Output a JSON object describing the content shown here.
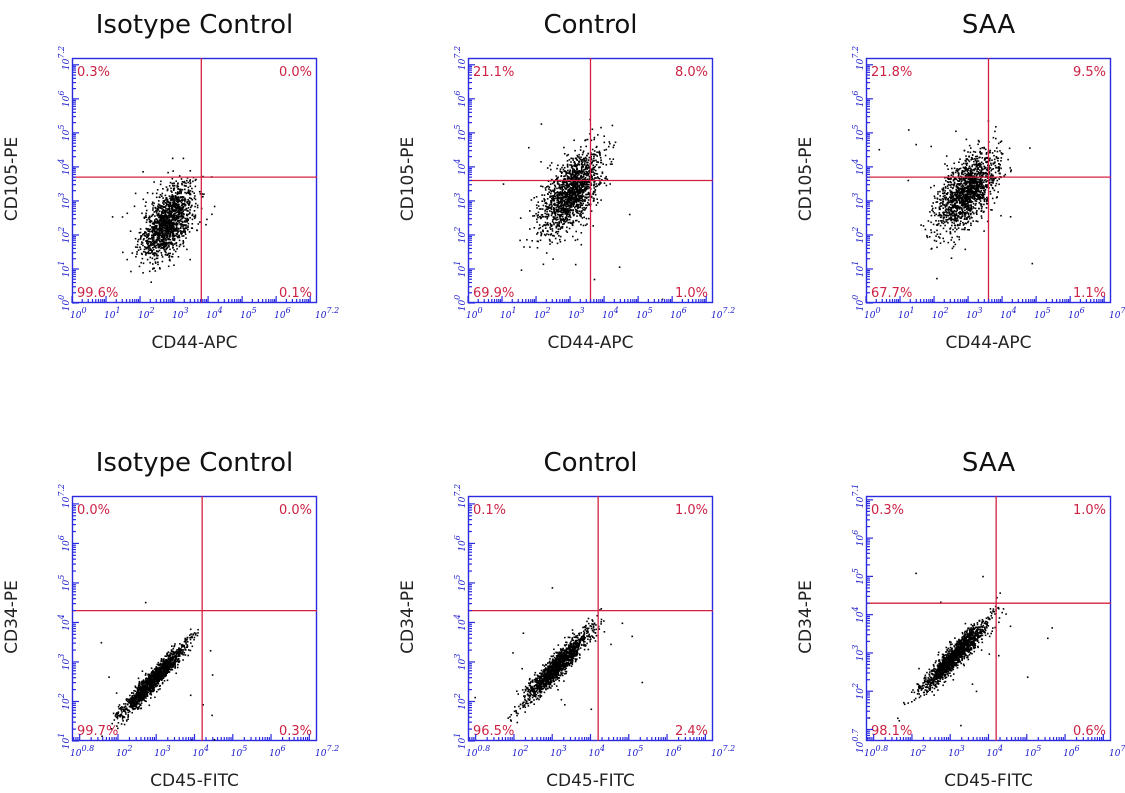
{
  "colors": {
    "frame": "#2a2ae0",
    "gate": "#d42040",
    "dots": "#000000",
    "tick_labels": "#1a1acc"
  },
  "chart_data": [
    {
      "type": "scatter",
      "title": "Isotype Control",
      "xlabel": "CD44-APC",
      "ylabel": "CD105-PE",
      "scale": "log",
      "xlim": [
        0,
        7.2
      ],
      "ylim": [
        0,
        7.2
      ],
      "x_tick_labels": [
        "0",
        "1",
        "2",
        "3",
        "4",
        "5",
        "6",
        "7.2"
      ],
      "y_tick_labels": [
        "0",
        "1",
        "2",
        "3",
        "4",
        "5",
        "6",
        "7.2"
      ],
      "gate": {
        "x": 3.8,
        "y": 3.7
      },
      "quadrants": {
        "upper_left": "0.3%",
        "upper_right": "0.0%",
        "lower_left": "99.6%",
        "lower_right": "0.1%"
      },
      "cluster": {
        "center_x": 2.8,
        "center_y": 2.4,
        "sd_x": 0.38,
        "sd_y": 0.55,
        "correlation": 0.55,
        "n_events": 1400
      }
    },
    {
      "type": "scatter",
      "title": "Control",
      "xlabel": "CD44-APC",
      "ylabel": "CD105-PE",
      "scale": "log",
      "xlim": [
        0,
        7.2
      ],
      "ylim": [
        0,
        7.2
      ],
      "x_tick_labels": [
        "0",
        "1",
        "2",
        "3",
        "4",
        "5",
        "6",
        "7.2"
      ],
      "y_tick_labels": [
        "0",
        "1",
        "2",
        "3",
        "4",
        "5",
        "6",
        "7.2"
      ],
      "gate": {
        "x": 3.6,
        "y": 3.6
      },
      "quadrants": {
        "upper_left": "21.1%",
        "upper_right": "8.0%",
        "lower_left": "69.9%",
        "lower_right": "1.0%"
      },
      "cluster": {
        "center_x": 3.0,
        "center_y": 3.25,
        "sd_x": 0.45,
        "sd_y": 0.6,
        "correlation": 0.6,
        "n_events": 1500
      }
    },
    {
      "type": "scatter",
      "title": "SAA",
      "xlabel": "CD44-APC",
      "ylabel": "CD105-PE",
      "scale": "log",
      "xlim": [
        0,
        7.2
      ],
      "ylim": [
        0,
        7.2
      ],
      "x_tick_labels": [
        "0",
        "1",
        "2",
        "3",
        "4",
        "5",
        "6",
        "7.2"
      ],
      "y_tick_labels": [
        "0",
        "1",
        "2",
        "3",
        "4",
        "5",
        "6",
        "7.2"
      ],
      "gate": {
        "x": 3.6,
        "y": 3.7
      },
      "quadrants": {
        "upper_left": "21.8%",
        "upper_right": "9.5%",
        "lower_left": "67.7%",
        "lower_right": "1.1%"
      },
      "cluster": {
        "center_x": 2.95,
        "center_y": 3.3,
        "sd_x": 0.45,
        "sd_y": 0.6,
        "correlation": 0.6,
        "n_events": 1500
      }
    },
    {
      "type": "scatter",
      "title": "Isotype Control",
      "xlabel": "CD45-FITC",
      "ylabel": "CD34-PE",
      "scale": "log",
      "xlim": [
        0.8,
        7.2
      ],
      "ylim": [
        1,
        7.2
      ],
      "x_tick_labels": [
        "0.8",
        "2",
        "3",
        "4",
        "5",
        "6",
        "7.2"
      ],
      "y_tick_labels": [
        "1",
        "2",
        "3",
        "4",
        "5",
        "6",
        "7.2"
      ],
      "gate": {
        "x": 4.2,
        "y": 4.3
      },
      "quadrants": {
        "upper_left": "0.0%",
        "upper_right": "0.0%",
        "lower_left": "99.7%",
        "lower_right": "0.3%"
      },
      "cluster": {
        "center_x": 2.9,
        "center_y": 2.55,
        "sd_x": 0.42,
        "sd_y": 0.45,
        "correlation": 0.95,
        "n_events": 1400
      }
    },
    {
      "type": "scatter",
      "title": "Control",
      "xlabel": "CD45-FITC",
      "ylabel": "CD34-PE",
      "scale": "log",
      "xlim": [
        0.8,
        7.2
      ],
      "ylim": [
        1,
        7.2
      ],
      "x_tick_labels": [
        "0.8",
        "2",
        "3",
        "4",
        "5",
        "6",
        "7.2"
      ],
      "y_tick_labels": [
        "1",
        "2",
        "3",
        "4",
        "5",
        "6",
        "7.2"
      ],
      "gate": {
        "x": 4.2,
        "y": 4.3
      },
      "quadrants": {
        "upper_left": "0.1%",
        "upper_right": "1.0%",
        "lower_left": "96.5%",
        "lower_right": "2.4%"
      },
      "cluster": {
        "center_x": 3.1,
        "center_y": 2.9,
        "sd_x": 0.42,
        "sd_y": 0.45,
        "correlation": 0.93,
        "n_events": 1400
      }
    },
    {
      "type": "scatter",
      "title": "SAA",
      "xlabel": "CD45-FITC",
      "ylabel": "CD34-PE",
      "scale": "log",
      "xlim": [
        0.8,
        7.2
      ],
      "ylim": [
        0.7,
        7.1
      ],
      "x_tick_labels": [
        "0.8",
        "2",
        "3",
        "4",
        "5",
        "6",
        "7.2"
      ],
      "y_tick_labels": [
        "0.7",
        "2",
        "3",
        "4",
        "5",
        "6",
        "7.1"
      ],
      "gate": {
        "x": 4.2,
        "y": 4.3
      },
      "quadrants": {
        "upper_left": "0.3%",
        "upper_right": "1.0%",
        "lower_left": "98.1%",
        "lower_right": "0.6%"
      },
      "cluster": {
        "center_x": 3.1,
        "center_y": 2.95,
        "sd_x": 0.42,
        "sd_y": 0.45,
        "correlation": 0.93,
        "n_events": 1400
      }
    }
  ]
}
